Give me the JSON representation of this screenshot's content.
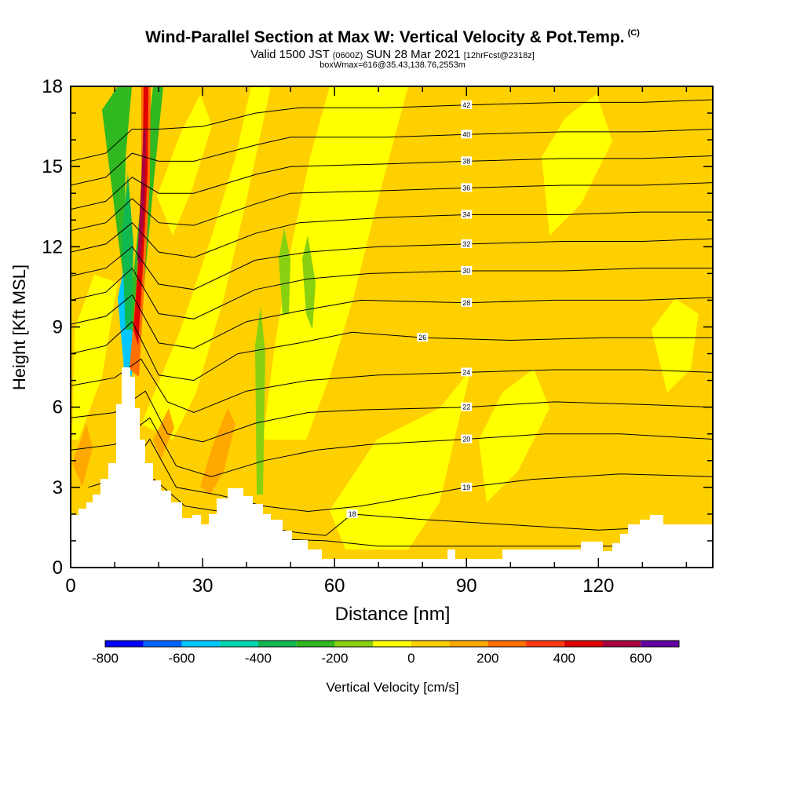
{
  "title": {
    "main": "Wind-Parallel Section at Max W: Vertical Velocity & Pot.Temp.",
    "copyright": "(C)",
    "valid_prefix": "Valid 1500 JST",
    "valid_utc": "(0600Z)",
    "valid_date": "SUN 28 Mar 2021",
    "forecast": "[12hrFcst@2318z]",
    "box_info": "boxWmax=616@35.43,138.76,2553m"
  },
  "chart_data": {
    "type": "contour",
    "xlabel": "Distance [nm]",
    "ylabel": "Height [Kft MSL]",
    "xlim": [
      0,
      146
    ],
    "ylim": [
      0,
      18
    ],
    "xticks": [
      0,
      30,
      60,
      90,
      120
    ],
    "yticks": [
      0,
      3,
      6,
      9,
      12,
      15,
      18
    ],
    "colorbar": {
      "label": "Vertical Velocity [cm/s]",
      "range": [
        -800,
        700
      ],
      "step": 100,
      "tick_values": [
        -800,
        -600,
        -400,
        -200,
        0,
        200,
        400,
        600
      ],
      "colors": [
        "#0000ff",
        "#0064ff",
        "#00c8ff",
        "#00d8b0",
        "#10b850",
        "#30b820",
        "#88d010",
        "#ffff00",
        "#ffd000",
        "#ffa800",
        "#ff7000",
        "#ff3810",
        "#e00000",
        "#a80040",
        "#6000a0"
      ]
    },
    "theta_contour_labels": [
      18,
      19,
      20,
      22,
      24,
      26,
      28,
      30,
      32,
      34,
      36,
      38,
      40,
      42
    ],
    "theta_contours": [
      {
        "value": 16,
        "pts": [
          [
            4,
            0.4
          ],
          [
            20,
            0.9
          ],
          [
            40,
            1.1
          ],
          [
            58,
            1.0
          ],
          [
            70,
            0.8
          ],
          [
            146,
            0.8
          ]
        ]
      },
      {
        "value": 18,
        "pts": [
          [
            4,
            2.2
          ],
          [
            12,
            2.4
          ],
          [
            19,
            3.3
          ],
          [
            26,
            2.3
          ],
          [
            34,
            2.1
          ],
          [
            44,
            1.5
          ],
          [
            52,
            1.3
          ],
          [
            58,
            1.2
          ],
          [
            64,
            2.0
          ],
          [
            80,
            1.8
          ],
          [
            100,
            1.6
          ],
          [
            120,
            1.4
          ],
          [
            146,
            1.6
          ]
        ]
      },
      {
        "value": 19,
        "pts": [
          [
            4,
            3.0
          ],
          [
            12,
            3.4
          ],
          [
            18,
            4.8
          ],
          [
            24,
            3.0
          ],
          [
            34,
            2.7
          ],
          [
            44,
            2.3
          ],
          [
            54,
            2.1
          ],
          [
            66,
            2.3
          ],
          [
            90,
            3.0
          ],
          [
            105,
            3.3
          ],
          [
            125,
            3.5
          ],
          [
            146,
            3.4
          ]
        ]
      },
      {
        "value": 20,
        "pts": [
          [
            0,
            4.4
          ],
          [
            10,
            4.6
          ],
          [
            18,
            5.6
          ],
          [
            24,
            3.8
          ],
          [
            32,
            3.4
          ],
          [
            44,
            4.0
          ],
          [
            56,
            4.4
          ],
          [
            68,
            4.6
          ],
          [
            90,
            4.8
          ],
          [
            108,
            5.0
          ],
          [
            125,
            5.0
          ],
          [
            146,
            4.8
          ]
        ]
      },
      {
        "value": 22,
        "pts": [
          [
            0,
            5.6
          ],
          [
            10,
            5.8
          ],
          [
            17,
            6.6
          ],
          [
            22,
            5.0
          ],
          [
            30,
            4.7
          ],
          [
            42,
            5.4
          ],
          [
            54,
            5.8
          ],
          [
            66,
            5.9
          ],
          [
            90,
            6.0
          ],
          [
            110,
            6.2
          ],
          [
            130,
            6.1
          ],
          [
            146,
            6.0
          ]
        ]
      },
      {
        "value": 24,
        "pts": [
          [
            0,
            6.8
          ],
          [
            10,
            7.1
          ],
          [
            16,
            7.8
          ],
          [
            22,
            6.2
          ],
          [
            28,
            5.8
          ],
          [
            40,
            6.6
          ],
          [
            54,
            7.0
          ],
          [
            70,
            7.2
          ],
          [
            90,
            7.3
          ],
          [
            110,
            7.4
          ],
          [
            130,
            7.4
          ],
          [
            146,
            7.3
          ]
        ]
      },
      {
        "value": 26,
        "pts": [
          [
            0,
            8.0
          ],
          [
            8,
            8.3
          ],
          [
            14,
            9.2
          ],
          [
            20,
            7.2
          ],
          [
            28,
            7.0
          ],
          [
            38,
            8.0
          ],
          [
            52,
            8.4
          ],
          [
            64,
            8.8
          ],
          [
            80,
            8.6
          ],
          [
            100,
            8.5
          ],
          [
            122,
            8.6
          ],
          [
            146,
            8.6
          ]
        ]
      },
      {
        "value": 28,
        "pts": [
          [
            0,
            9.1
          ],
          [
            8,
            9.4
          ],
          [
            14,
            10.2
          ],
          [
            20,
            8.4
          ],
          [
            28,
            8.2
          ],
          [
            40,
            9.2
          ],
          [
            52,
            9.6
          ],
          [
            66,
            10.0
          ],
          [
            90,
            9.9
          ],
          [
            110,
            10.0
          ],
          [
            130,
            10.0
          ],
          [
            146,
            10.1
          ]
        ]
      },
      {
        "value": 30,
        "pts": [
          [
            0,
            10.0
          ],
          [
            8,
            10.3
          ],
          [
            14,
            11.2
          ],
          [
            20,
            9.5
          ],
          [
            28,
            9.3
          ],
          [
            42,
            10.4
          ],
          [
            54,
            10.8
          ],
          [
            68,
            11.0
          ],
          [
            90,
            11.1
          ],
          [
            112,
            11.1
          ],
          [
            130,
            11.2
          ],
          [
            146,
            11.2
          ]
        ]
      },
      {
        "value": 32,
        "pts": [
          [
            0,
            10.9
          ],
          [
            8,
            11.2
          ],
          [
            14,
            12.0
          ],
          [
            20,
            10.6
          ],
          [
            28,
            10.4
          ],
          [
            42,
            11.5
          ],
          [
            54,
            11.8
          ],
          [
            70,
            12.0
          ],
          [
            90,
            12.1
          ],
          [
            112,
            12.2
          ],
          [
            130,
            12.2
          ],
          [
            146,
            12.3
          ]
        ]
      },
      {
        "value": 34,
        "pts": [
          [
            0,
            11.8
          ],
          [
            8,
            12.1
          ],
          [
            14,
            12.9
          ],
          [
            20,
            11.8
          ],
          [
            28,
            11.6
          ],
          [
            42,
            12.5
          ],
          [
            52,
            12.9
          ],
          [
            72,
            13.1
          ],
          [
            90,
            13.2
          ],
          [
            112,
            13.2
          ],
          [
            130,
            13.3
          ],
          [
            146,
            13.3
          ]
        ]
      },
      {
        "value": 36,
        "pts": [
          [
            0,
            12.6
          ],
          [
            8,
            12.9
          ],
          [
            14,
            13.8
          ],
          [
            20,
            12.9
          ],
          [
            28,
            12.8
          ],
          [
            42,
            13.6
          ],
          [
            50,
            14.0
          ],
          [
            72,
            14.1
          ],
          [
            90,
            14.2
          ],
          [
            112,
            14.3
          ],
          [
            130,
            14.3
          ],
          [
            146,
            14.4
          ]
        ]
      },
      {
        "value": 38,
        "pts": [
          [
            0,
            13.4
          ],
          [
            8,
            13.7
          ],
          [
            14,
            14.6
          ],
          [
            20,
            14.0
          ],
          [
            28,
            14.0
          ],
          [
            42,
            14.7
          ],
          [
            50,
            15.0
          ],
          [
            72,
            15.1
          ],
          [
            90,
            15.2
          ],
          [
            112,
            15.3
          ],
          [
            130,
            15.3
          ],
          [
            146,
            15.4
          ]
        ]
      },
      {
        "value": 40,
        "pts": [
          [
            0,
            14.3
          ],
          [
            8,
            14.6
          ],
          [
            14,
            15.5
          ],
          [
            20,
            15.2
          ],
          [
            28,
            15.2
          ],
          [
            42,
            15.8
          ],
          [
            50,
            16.1
          ],
          [
            72,
            16.1
          ],
          [
            90,
            16.2
          ],
          [
            112,
            16.3
          ],
          [
            130,
            16.3
          ],
          [
            146,
            16.4
          ]
        ]
      },
      {
        "value": 42,
        "pts": [
          [
            0,
            15.2
          ],
          [
            8,
            15.5
          ],
          [
            14,
            16.4
          ],
          [
            20,
            16.4
          ],
          [
            30,
            16.5
          ],
          [
            42,
            17.0
          ],
          [
            52,
            17.2
          ],
          [
            72,
            17.2
          ],
          [
            90,
            17.3
          ],
          [
            112,
            17.4
          ],
          [
            130,
            17.4
          ],
          [
            146,
            17.5
          ]
        ]
      }
    ]
  }
}
